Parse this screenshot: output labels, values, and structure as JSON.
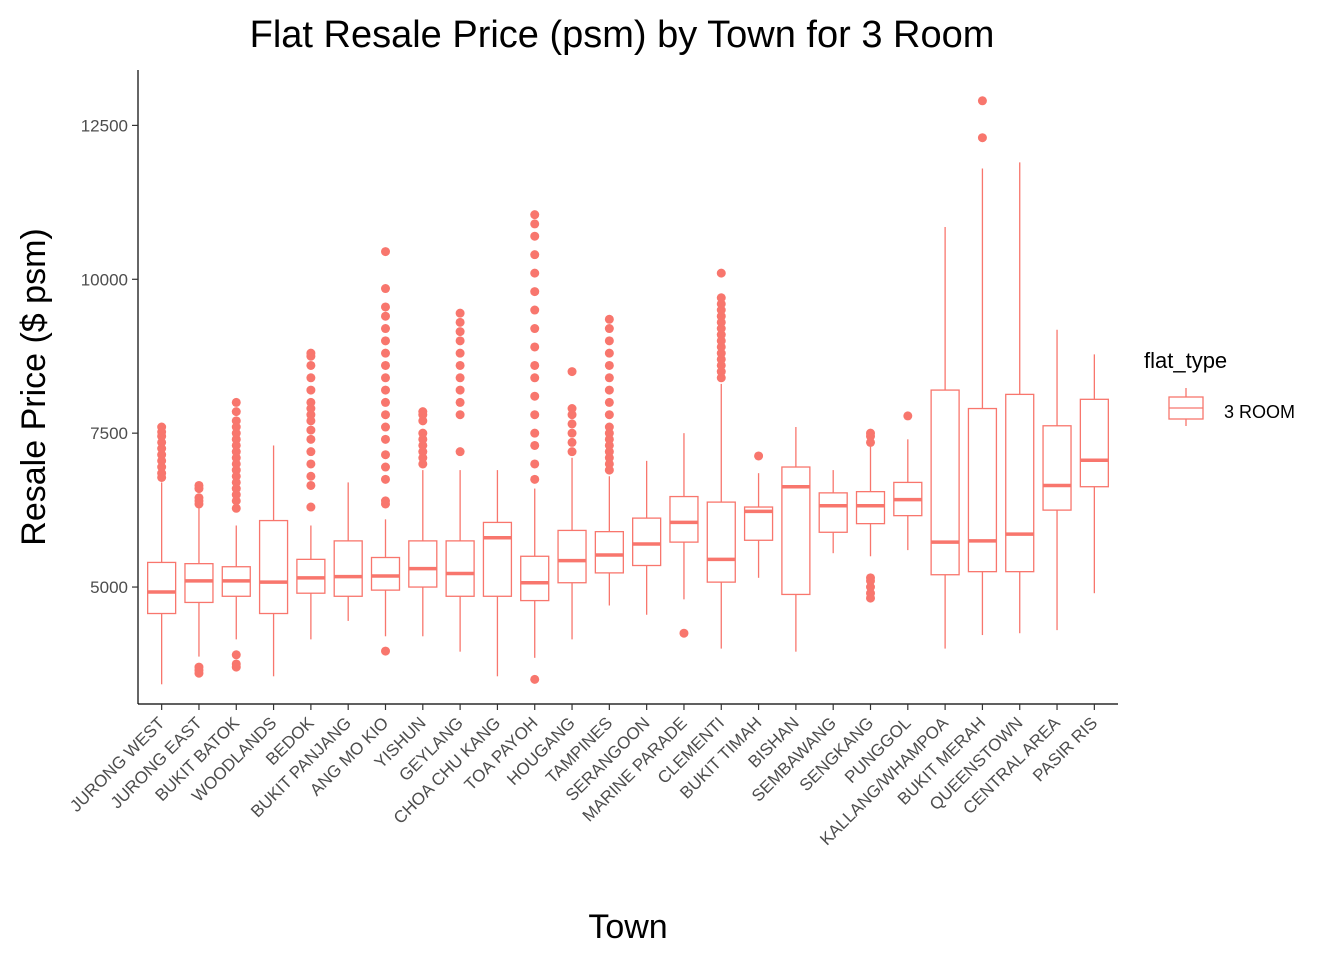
{
  "chart_data": {
    "type": "boxplot",
    "title": "Flat Resale Price (psm) by Town for 3 Room",
    "xlabel": "Town",
    "ylabel": "Resale Price ($ psm)",
    "ylim": [
      3100,
      13400
    ],
    "yticks": [
      5000,
      7500,
      10000,
      12500
    ],
    "color": "#F8766D",
    "legend": {
      "title": "flat_type",
      "entries": [
        "3 ROOM"
      ],
      "position": "right"
    },
    "categories": [
      "JURONG WEST",
      "JURONG EAST",
      "BUKIT BATOK",
      "WOODLANDS",
      "BEDOK",
      "BUKIT PANJANG",
      "ANG MO KIO",
      "YISHUN",
      "GEYLANG",
      "CHOA CHU KANG",
      "TOA PAYOH",
      "HOUGANG",
      "TAMPINES",
      "SERANGOON",
      "MARINE PARADE",
      "CLEMENTI",
      "BUKIT TIMAH",
      "BISHAN",
      "SEMBAWANG",
      "SENGKANG",
      "PUNGGOL",
      "KALLANG/WHAMPOA",
      "BUKIT MERAH",
      "QUEENSTOWN",
      "CENTRAL AREA",
      "PASIR RIS"
    ],
    "series": [
      {
        "name": "3 ROOM",
        "boxes": [
          {
            "min": 3420,
            "q1": 4570,
            "median": 4920,
            "q3": 5400,
            "max": 6700,
            "outliers": [
              6780,
              6850,
              6950,
              7050,
              7150,
              7250,
              7350,
              7450,
              7520,
              7600
            ]
          },
          {
            "min": 3870,
            "q1": 4750,
            "median": 5100,
            "q3": 5380,
            "max": 6300,
            "outliers": [
              3600,
              3650,
              3700,
              6350,
              6400,
              6450,
              6600,
              6650
            ]
          },
          {
            "min": 4150,
            "q1": 4850,
            "median": 5100,
            "q3": 5330,
            "max": 6000,
            "outliers": [
              3700,
              3750,
              3900,
              6280,
              6400,
              6500,
              6600,
              6700,
              6800,
              6900,
              7000,
              7100,
              7200,
              7300,
              7400,
              7500,
              7600,
              7700,
              7850,
              8000
            ]
          },
          {
            "min": 3550,
            "q1": 4570,
            "median": 5080,
            "q3": 6080,
            "max": 7300,
            "outliers": []
          },
          {
            "min": 4150,
            "q1": 4900,
            "median": 5150,
            "q3": 5450,
            "max": 6000,
            "outliers": [
              6300,
              6650,
              6800,
              7000,
              7200,
              7400,
              7550,
              7700,
              7800,
              7900,
              8000,
              8200,
              8400,
              8600,
              8750,
              8800
            ]
          },
          {
            "min": 4450,
            "q1": 4850,
            "median": 5170,
            "q3": 5750,
            "max": 6700,
            "outliers": []
          },
          {
            "min": 4200,
            "q1": 4950,
            "median": 5180,
            "q3": 5480,
            "max": 6100,
            "outliers": [
              3960,
              6350,
              6400,
              6750,
              6950,
              7150,
              7400,
              7600,
              7800,
              8000,
              8200,
              8400,
              8600,
              8800,
              9000,
              9200,
              9400,
              9550,
              9850,
              10450
            ]
          },
          {
            "min": 4200,
            "q1": 5000,
            "median": 5300,
            "q3": 5750,
            "max": 6900,
            "outliers": [
              7000,
              7100,
              7200,
              7300,
              7400,
              7500,
              7700,
              7800,
              7850
            ]
          },
          {
            "min": 3950,
            "q1": 4850,
            "median": 5220,
            "q3": 5750,
            "max": 6900,
            "outliers": [
              7200,
              7800,
              8000,
              8200,
              8400,
              8600,
              8800,
              9000,
              9150,
              9300,
              9450
            ]
          },
          {
            "min": 3550,
            "q1": 4850,
            "median": 5800,
            "q3": 6050,
            "max": 6900,
            "outliers": []
          },
          {
            "min": 3850,
            "q1": 4780,
            "median": 5070,
            "q3": 5500,
            "max": 6600,
            "outliers": [
              3500,
              6750,
              7000,
              7300,
              7500,
              7800,
              8100,
              8400,
              8600,
              8900,
              9200,
              9500,
              9800,
              10100,
              10400,
              10700,
              10900,
              11050
            ]
          },
          {
            "min": 4150,
            "q1": 5070,
            "median": 5430,
            "q3": 5920,
            "max": 7100,
            "outliers": [
              7200,
              7350,
              7500,
              7650,
              7800,
              7900,
              8500
            ]
          },
          {
            "min": 4700,
            "q1": 5230,
            "median": 5520,
            "q3": 5900,
            "max": 6800,
            "outliers": [
              6900,
              7000,
              7100,
              7200,
              7300,
              7400,
              7500,
              7600,
              7800,
              8000,
              8200,
              8400,
              8600,
              8800,
              9000,
              9200,
              9350
            ]
          },
          {
            "min": 4550,
            "q1": 5350,
            "median": 5700,
            "q3": 6120,
            "max": 7050,
            "outliers": []
          },
          {
            "min": 4800,
            "q1": 5730,
            "median": 6050,
            "q3": 6470,
            "max": 7500,
            "outliers": [
              4250
            ]
          },
          {
            "min": 4000,
            "q1": 5080,
            "median": 5450,
            "q3": 6380,
            "max": 8300,
            "outliers": [
              8400,
              8500,
              8600,
              8700,
              8800,
              8900,
              9000,
              9100,
              9200,
              9300,
              9400,
              9500,
              9600,
              9700,
              10100
            ]
          },
          {
            "min": 5150,
            "q1": 5760,
            "median": 6230,
            "q3": 6300,
            "max": 6850,
            "outliers": [
              7130
            ]
          },
          {
            "min": 3950,
            "q1": 4880,
            "median": 6630,
            "q3": 6950,
            "max": 7600,
            "outliers": []
          },
          {
            "min": 5550,
            "q1": 5890,
            "median": 6320,
            "q3": 6530,
            "max": 6900,
            "outliers": []
          },
          {
            "min": 5500,
            "q1": 6030,
            "median": 6320,
            "q3": 6550,
            "max": 7300,
            "outliers": [
              4820,
              4900,
              5000,
              5100,
              5150,
              7350,
              7450,
              7500
            ]
          },
          {
            "min": 5600,
            "q1": 6160,
            "median": 6420,
            "q3": 6700,
            "max": 7400,
            "outliers": [
              7780
            ]
          },
          {
            "min": 4000,
            "q1": 5200,
            "median": 5730,
            "q3": 8200,
            "max": 10850,
            "outliers": []
          },
          {
            "min": 4220,
            "q1": 5250,
            "median": 5750,
            "q3": 7900,
            "max": 11800,
            "outliers": [
              12300,
              12900
            ]
          },
          {
            "min": 4250,
            "q1": 5250,
            "median": 5860,
            "q3": 8130,
            "max": 11900,
            "outliers": []
          },
          {
            "min": 4300,
            "q1": 6250,
            "median": 6650,
            "q3": 7620,
            "max": 9180,
            "outliers": []
          },
          {
            "min": 4900,
            "q1": 6630,
            "median": 7060,
            "q3": 8050,
            "max": 8780,
            "outliers": []
          }
        ]
      }
    ]
  }
}
